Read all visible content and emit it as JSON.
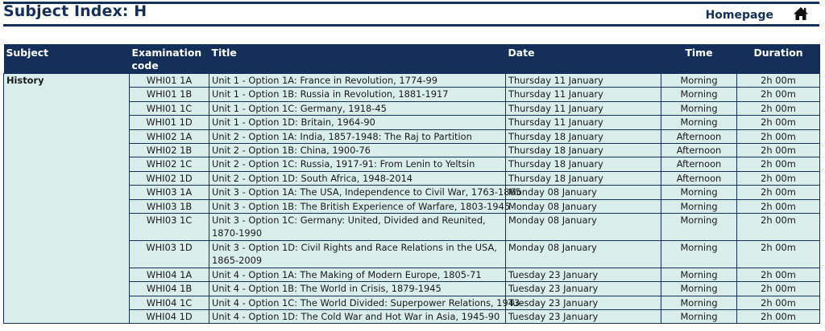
{
  "header": {
    "title": "Subject Index: H",
    "homepage_label": "Homepage",
    "home_icon": "home-icon"
  },
  "table": {
    "columns": [
      "Subject",
      "Examination code",
      "Title",
      "Date",
      "Time",
      "Duration"
    ],
    "subject": "History",
    "rows": [
      {
        "code": "WHI01 1A",
        "title": "Unit 1 - Option 1A: France in Revolution, 1774-99",
        "date": "Thursday 11 January",
        "time": "Morning",
        "duration": "2h 00m"
      },
      {
        "code": "WHI01 1B",
        "title": "Unit 1 - Option 1B: Russia in Revolution, 1881-1917",
        "date": "Thursday 11 January",
        "time": "Morning",
        "duration": "2h 00m"
      },
      {
        "code": "WHI01 1C",
        "title": "Unit 1 - Option 1C: Germany, 1918-45",
        "date": "Thursday 11 January",
        "time": "Morning",
        "duration": "2h 00m"
      },
      {
        "code": "WHI01 1D",
        "title": "Unit 1 - Option 1D: Britain, 1964-90",
        "date": "Thursday 11 January",
        "time": "Morning",
        "duration": "2h 00m"
      },
      {
        "code": "WHI02 1A",
        "title": "Unit 2 - Option 1A: India, 1857-1948: The Raj to Partition",
        "date": "Thursday 18 January",
        "time": "Afternoon",
        "duration": "2h 00m"
      },
      {
        "code": "WHI02 1B",
        "title": "Unit 2 - Option 1B: China, 1900-76",
        "date": "Thursday 18 January",
        "time": "Afternoon",
        "duration": "2h 00m"
      },
      {
        "code": "WHI02 1C",
        "title": "Unit 2 - Option 1C: Russia, 1917-91: From Lenin to Yeltsin",
        "date": "Thursday 18 January",
        "time": "Afternoon",
        "duration": "2h 00m"
      },
      {
        "code": "WHI02 1D",
        "title": "Unit 2 - Option 1D: South Africa, 1948-2014",
        "date": "Thursday 18 January",
        "time": "Afternoon",
        "duration": "2h 00m"
      },
      {
        "code": "WHI03 1A",
        "title": "Unit 3 - Option 1A: The USA, Independence to Civil War, 1763-1865",
        "date": "Monday 08 January",
        "time": "Morning",
        "duration": "2h 00m"
      },
      {
        "code": "WHI03 1B",
        "title": "Unit 3 - Option 1B: The British Experience of Warfare, 1803-1945",
        "date": "Monday 08 January",
        "time": "Morning",
        "duration": "2h 00m"
      },
      {
        "code": "WHI03 1C",
        "title": "Unit 3 - Option 1C: Germany: United, Divided and Reunited, 1870-1990",
        "date": "Monday 08 January",
        "time": "Morning",
        "duration": "2h 00m",
        "tall": true
      },
      {
        "code": "WHI03 1D",
        "title": "Unit 3 - Option 1D: Civil Rights and Race Relations in the USA, 1865-2009",
        "date": "Monday 08 January",
        "time": "Morning",
        "duration": "2h 00m",
        "tall": true
      },
      {
        "code": "WHI04 1A",
        "title": "Unit 4 - Option 1A: The Making of Modern Europe, 1805-71",
        "date": "Tuesday 23 January",
        "time": "Morning",
        "duration": "2h 00m"
      },
      {
        "code": "WHI04 1B",
        "title": "Unit 4 - Option 1B: The World in Crisis, 1879-1945",
        "date": "Tuesday 23 January",
        "time": "Morning",
        "duration": "2h 00m"
      },
      {
        "code": "WHI04 1C",
        "title": "Unit 4 - Option 1C: The World Divided: Superpower Relations, 1943-",
        "date": "Tuesday 23 January",
        "time": "Morning",
        "duration": "2h 00m"
      },
      {
        "code": "WHI04 1D",
        "title": "Unit 4 - Option 1D: The Cold War and Hot War in Asia, 1945-90",
        "date": "Tuesday 23 January",
        "time": "Morning",
        "duration": "2h 00m"
      }
    ]
  }
}
